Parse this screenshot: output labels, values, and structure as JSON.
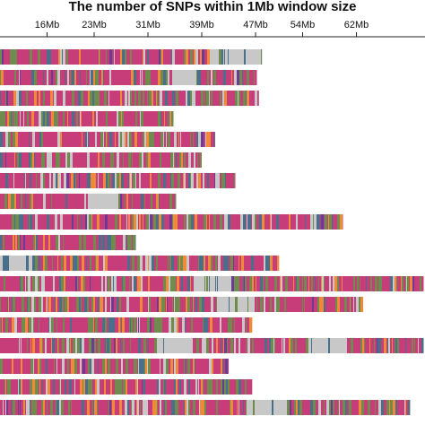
{
  "chart_data": {
    "type": "heatmap",
    "title": "The number of SNPs within 1Mb window size",
    "xlabel": "",
    "ylabel": "",
    "x_ticks": [
      {
        "value": 16,
        "label": "16Mb"
      },
      {
        "value": 23,
        "label": "23Mb"
      },
      {
        "value": 31,
        "label": "31Mb"
      },
      {
        "value": 39,
        "label": "39Mb"
      },
      {
        "value": 47,
        "label": "47Mb"
      },
      {
        "value": 54,
        "label": "54Mb"
      },
      {
        "value": 62,
        "label": "62Mb"
      }
    ],
    "x_range": [
      9,
      64
    ],
    "grid": false,
    "legend": "none",
    "palette": {
      "low": "#c8c8c8",
      "mid_low": "#4a6f8a",
      "mid": "#6f8c4e",
      "mid_high": "#c73d7a",
      "high": "#f08a38",
      "peak": "#6b3b96"
    },
    "rows": [
      {
        "length_mb": 39.0,
        "density_profile": [
          0.7,
          0.8,
          0.9,
          0.8,
          0.6,
          0.9,
          0.8,
          0.7,
          0.1,
          0.2
        ]
      },
      {
        "length_mb": 38.2,
        "density_profile": [
          0.8,
          0.6,
          0.9,
          0.7,
          0.8,
          0.6,
          0.1,
          0.8,
          0.7
        ]
      },
      {
        "length_mb": 38.5,
        "density_profile": [
          0.7,
          0.8,
          0.6,
          0.9,
          0.7,
          0.8,
          0.7,
          0.6
        ]
      },
      {
        "length_mb": 25.8,
        "density_profile": [
          0.5,
          0.4,
          0.6,
          0.7,
          0.5,
          0.6
        ]
      },
      {
        "length_mb": 32.0,
        "density_profile": [
          0.7,
          0.9,
          1.0,
          0.8,
          0.6,
          0.7,
          0.8
        ]
      },
      {
        "length_mb": 30.0,
        "density_profile": [
          0.8,
          0.7,
          0.6,
          0.5,
          0.6,
          0.7
        ]
      },
      {
        "length_mb": 35.0,
        "density_profile": [
          0.8,
          0.7,
          0.8,
          0.6,
          0.7,
          0.5,
          0.6
        ]
      },
      {
        "length_mb": 26.2,
        "density_profile": [
          0.7,
          0.8,
          0.6,
          0.1,
          0.6,
          0.5
        ]
      },
      {
        "length_mb": 51.0,
        "density_profile": [
          0.7,
          0.8,
          0.6,
          0.7,
          0.8,
          0.5,
          0.6,
          0.7,
          0.8,
          0.6
        ]
      },
      {
        "length_mb": 20.2,
        "density_profile": [
          0.8,
          0.9,
          0.7,
          0.8
        ]
      },
      {
        "length_mb": 41.5,
        "density_profile": [
          0.1,
          0.5,
          0.7,
          0.6,
          0.7,
          0.8,
          0.6,
          0.7
        ]
      },
      {
        "length_mb": 63.0,
        "density_profile": [
          0.6,
          0.7,
          0.5,
          0.7,
          0.6,
          0.1,
          0.7,
          0.6,
          0.7,
          0.6,
          0.5
        ]
      },
      {
        "length_mb": 54.0,
        "density_profile": [
          0.7,
          0.6,
          0.7,
          0.8,
          0.6,
          0.5,
          0.1,
          0.7,
          0.6,
          0.7
        ]
      },
      {
        "length_mb": 37.5,
        "density_profile": [
          0.7,
          0.6,
          0.8,
          0.7,
          0.5,
          0.8,
          0.7
        ]
      },
      {
        "length_mb": 63.0,
        "density_profile": [
          0.8,
          0.7,
          0.6,
          0.7,
          0.1,
          0.7,
          0.8,
          0.6,
          0.1,
          0.7,
          0.6
        ]
      },
      {
        "length_mb": 34.0,
        "density_profile": [
          0.7,
          0.6,
          0.8,
          0.5,
          0.6,
          0.7
        ]
      },
      {
        "length_mb": 37.5,
        "density_profile": [
          0.6,
          0.8,
          0.7,
          0.5,
          0.7,
          0.8,
          0.6
        ]
      },
      {
        "length_mb": 61.0,
        "density_profile": [
          0.7,
          0.6,
          0.8,
          0.7,
          0.6,
          0.7,
          0.1,
          0.6,
          0.7,
          0.6
        ]
      }
    ]
  }
}
